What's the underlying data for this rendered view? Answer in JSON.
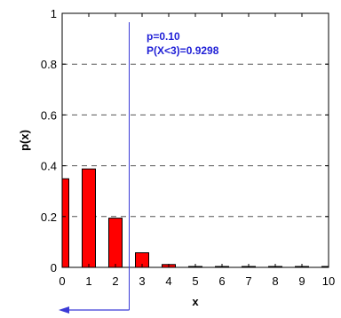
{
  "chart_data": {
    "type": "bar",
    "title": "",
    "xlabel": "x",
    "ylabel": "p(x)",
    "x": [
      0,
      1,
      2,
      3,
      4,
      5,
      6,
      7,
      8,
      9,
      10
    ],
    "values": [
      0.3487,
      0.3874,
      0.1937,
      0.0574,
      0.0112,
      0.0015,
      0.0001,
      0.0,
      0.0,
      0.0,
      0.0
    ],
    "xticks": [
      "0",
      "1",
      "2",
      "3",
      "4",
      "5",
      "6",
      "7",
      "8",
      "9",
      "10"
    ],
    "yticks": [
      "0",
      "0.2",
      "0.4",
      "0.6",
      "0.8",
      "1"
    ],
    "xlim": [
      0,
      10
    ],
    "ylim": [
      0,
      1
    ],
    "grid": "horizontal-dashed",
    "bar_color": "#ff0000",
    "marker_line": {
      "x": 2.5,
      "color": "#3a3ad6"
    },
    "arrow_direction": "left",
    "annotations": [
      "p=0.10",
      "P(X<3)=0.9298"
    ]
  }
}
